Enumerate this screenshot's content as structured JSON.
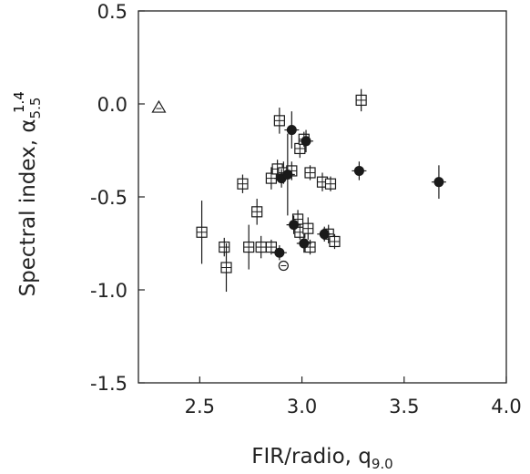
{
  "chart_data": {
    "type": "scatter",
    "title": "",
    "xlabel": {
      "main": "FIR/radio, q",
      "sub": "9.0"
    },
    "ylabel": {
      "main": "Spectral index, α",
      "sub": "5.5",
      "sup": "1.4"
    },
    "xlim": [
      2.2,
      4.0
    ],
    "ylim": [
      -1.5,
      0.5
    ],
    "x_ticks": [
      2.5,
      3.0,
      3.5,
      4.0
    ],
    "x_tick_labels": [
      "2.5",
      "3.0",
      "3.5",
      "4.0"
    ],
    "y_ticks": [
      0.5,
      0.0,
      -0.5,
      -1.0,
      -1.5
    ],
    "y_tick_labels": [
      "0.5",
      "0.0",
      "-0.5",
      "-1.0",
      "-1.5"
    ],
    "grid": false,
    "series": [
      {
        "marker": "square-plus",
        "points": [
          {
            "x": 2.51,
            "y": -0.69,
            "yerr": 0.17
          },
          {
            "x": 2.62,
            "y": -0.77,
            "yerr": 0.05
          },
          {
            "x": 2.63,
            "y": -0.88,
            "yerr": 0.13
          },
          {
            "x": 2.71,
            "y": -0.43,
            "yerr": 0.05
          },
          {
            "x": 2.74,
            "y": -0.77,
            "yerr": 0.12
          },
          {
            "x": 2.78,
            "y": -0.58,
            "yerr": 0.07
          },
          {
            "x": 2.8,
            "y": -0.77,
            "yerr": 0.06
          },
          {
            "x": 2.85,
            "y": -0.77,
            "yerr": 0.04
          },
          {
            "x": 2.85,
            "y": -0.4,
            "yerr": 0.06
          },
          {
            "x": 2.88,
            "y": -0.35,
            "yerr": 0.05
          },
          {
            "x": 2.89,
            "y": -0.09,
            "yerr": 0.07
          },
          {
            "x": 2.91,
            "y": -0.37,
            "yerr": 0.06
          },
          {
            "x": 2.95,
            "y": -0.36,
            "yerr": 0.05
          },
          {
            "x": 2.98,
            "y": -0.62,
            "yerr": 0.05
          },
          {
            "x": 2.99,
            "y": -0.69,
            "yerr": 0.04
          },
          {
            "x": 2.99,
            "y": -0.24,
            "yerr": 0.05
          },
          {
            "x": 3.01,
            "y": -0.19,
            "yerr": 0.04
          },
          {
            "x": 3.03,
            "y": -0.67,
            "yerr": 0.06
          },
          {
            "x": 3.04,
            "y": -0.37,
            "yerr": 0.04
          },
          {
            "x": 3.04,
            "y": -0.77,
            "yerr": 0.04
          },
          {
            "x": 3.1,
            "y": -0.42,
            "yerr": 0.05
          },
          {
            "x": 3.13,
            "y": -0.7,
            "yerr": 0.05
          },
          {
            "x": 3.14,
            "y": -0.43,
            "yerr": 0.04
          },
          {
            "x": 3.16,
            "y": -0.74,
            "yerr": 0.04
          },
          {
            "x": 3.29,
            "y": 0.02,
            "yerr": 0.06
          }
        ]
      },
      {
        "marker": "filled-circle",
        "points": [
          {
            "x": 2.89,
            "y": -0.8,
            "yerr": 0.04
          },
          {
            "x": 2.9,
            "y": -0.4,
            "yerr": 0.05
          },
          {
            "x": 2.93,
            "y": -0.38,
            "yerr": 0.22
          },
          {
            "x": 2.95,
            "y": -0.14,
            "yerr": 0.1
          },
          {
            "x": 2.96,
            "y": -0.65,
            "yerr": 0.05
          },
          {
            "x": 3.01,
            "y": -0.75,
            "yerr": 0.05
          },
          {
            "x": 3.02,
            "y": -0.2,
            "yerr": 0.06
          },
          {
            "x": 3.11,
            "y": -0.7,
            "yerr": 0.04
          },
          {
            "x": 3.28,
            "y": -0.36,
            "yerr": 0.05
          },
          {
            "x": 3.67,
            "y": -0.42,
            "yerr": 0.09
          }
        ]
      },
      {
        "marker": "open-circle",
        "points": [
          {
            "x": 2.91,
            "y": -0.87,
            "yerr": 0
          }
        ]
      },
      {
        "marker": "open-triangle",
        "points": [
          {
            "x": 2.3,
            "y": -0.02,
            "yerr": 0
          }
        ]
      }
    ]
  }
}
